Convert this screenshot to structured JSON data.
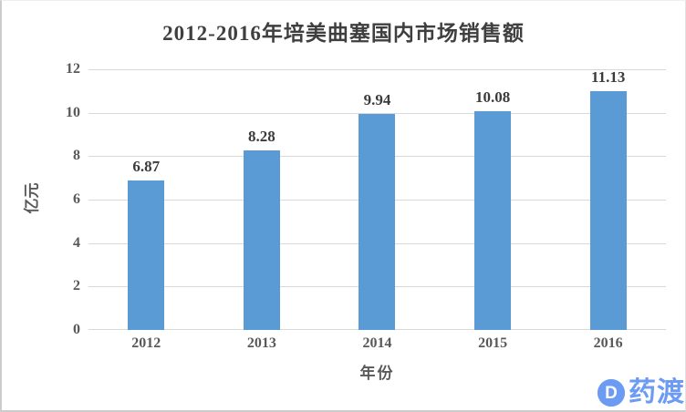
{
  "page": {
    "background": "#ffffff",
    "border_color": "#cccccc"
  },
  "chart_data": {
    "type": "bar",
    "title": "2012-2016年培美曲塞国内市场销售额",
    "categories": [
      "2012",
      "2013",
      "2014",
      "2015",
      "2016"
    ],
    "values": [
      6.87,
      8.28,
      9.94,
      10.08,
      11.13
    ],
    "data_labels": [
      "6.87",
      "8.28",
      "9.94",
      "10.08",
      "11.13"
    ],
    "xlabel": "年份",
    "ylabel": "亿元",
    "ylim": [
      0,
      12
    ],
    "yticks": [
      "0",
      "2",
      "4",
      "6",
      "8",
      "10",
      "12"
    ],
    "grid": "horizontal",
    "legend": "none",
    "bar_color": "#5B9BD5",
    "gridline_color": "#D9D9D9",
    "title_color": "#3F3F3F",
    "tick_color": "#595959"
  },
  "watermark": {
    "logo_letter": "D",
    "logo_text": "药渡",
    "color": "#6C9BF3"
  }
}
